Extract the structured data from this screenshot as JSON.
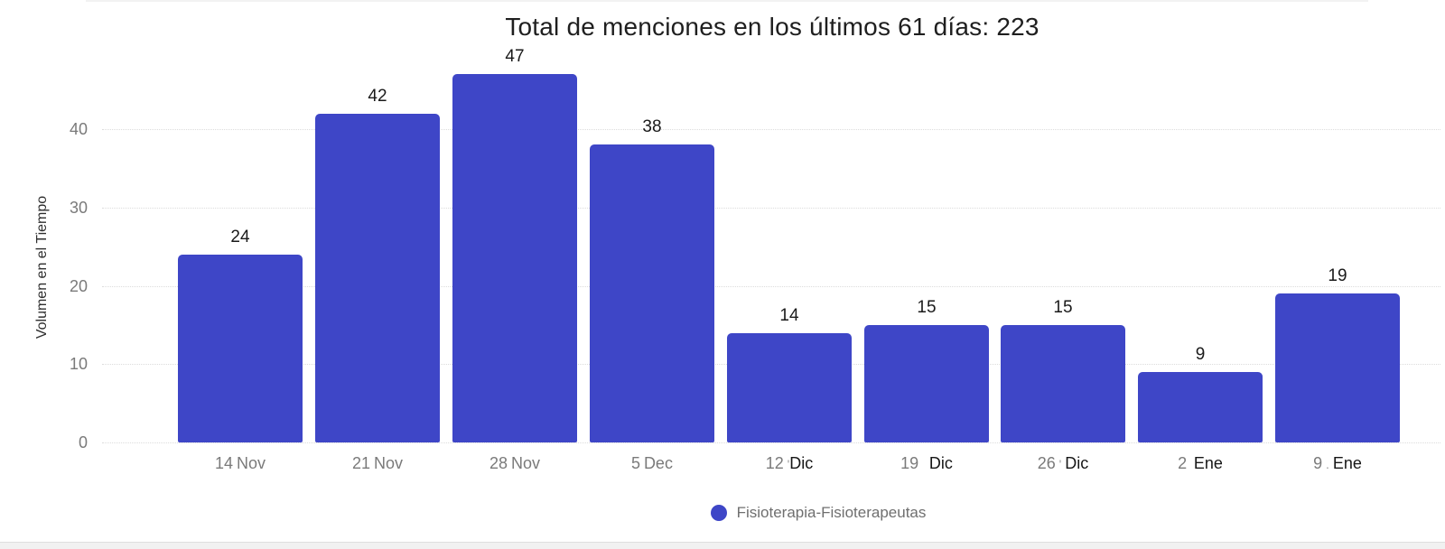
{
  "title": "Total de menciones en los últimos 61 días: 223",
  "accent_color": "#3e46c7",
  "legend": {
    "label": "Fisioterapia-Fisioterapeutas"
  },
  "chart_data": {
    "type": "bar",
    "title": "Total de menciones en los últimos 61 días: 223",
    "categories": [
      "14 Nov",
      "21 Nov",
      "28 Nov",
      "5 Dec",
      "12 Dic",
      "19 Dic",
      "26 Dic",
      "2 Ene",
      "9 Ene"
    ],
    "values": [
      24,
      42,
      47,
      38,
      14,
      15,
      15,
      9,
      19
    ],
    "series_name": "Fisioterapia-Fisioterapeutas",
    "xlabel": "",
    "ylabel": "Volumen en el Tiempo",
    "yticks": [
      0,
      10,
      20,
      30,
      40
    ],
    "ylim": [
      0,
      49
    ],
    "grid": true,
    "grid_style": "dotted",
    "legend_position": "bottom",
    "bar_color": "#3e46c7",
    "value_labels_shown": true,
    "x_label_parts": [
      {
        "day": "14",
        "sep": " ",
        "month": "Nov",
        "edited": false
      },
      {
        "day": "21",
        "sep": " ",
        "month": "Nov",
        "edited": false
      },
      {
        "day": "28",
        "sep": " ",
        "month": "Nov",
        "edited": false
      },
      {
        "day": "5",
        "sep": " ",
        "month": "Dec",
        "edited": false
      },
      {
        "day": "12",
        "sep": " '",
        "month": "Dic",
        "edited": true
      },
      {
        "day": "19",
        "sep": "   ",
        "month": "Dic",
        "edited": true
      },
      {
        "day": "26",
        "sep": " ' ",
        "month": "Dic",
        "edited": true
      },
      {
        "day": "2",
        "sep": "  ",
        "month": "Ene",
        "edited": true
      },
      {
        "day": "9",
        "sep": " . ",
        "month": "Ene",
        "edited": true
      }
    ]
  }
}
